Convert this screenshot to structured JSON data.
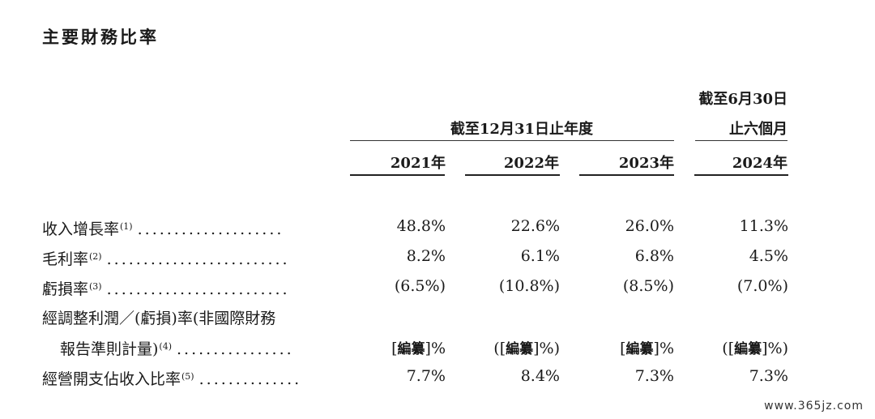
{
  "title": "主要財務比率",
  "header": {
    "group1": "截至12月31日止年度",
    "group2_line1": "截至6月30日",
    "group2_line2": "止六個月",
    "years": [
      "2021年",
      "2022年",
      "2023年",
      "2024年"
    ]
  },
  "rows": [
    {
      "label": "收入增長率",
      "note": "(1)",
      "dots": "....................",
      "values": [
        "48.8%",
        "22.6%",
        "26.0%",
        "11.3%"
      ]
    },
    {
      "label": "毛利率",
      "note": "(2)",
      "dots": ".........................",
      "values": [
        "8.2%",
        "6.1%",
        "6.8%",
        "4.5%"
      ]
    },
    {
      "label": "虧損率",
      "note": "(3)",
      "dots": ".........................",
      "values": [
        "(6.5%)",
        "(10.8%)",
        "(8.5%)",
        "(7.0%)"
      ]
    },
    {
      "label_line1": "經調整利潤／(虧損)率(非國際財務",
      "label_line2": "報告準則計量)",
      "note": "(4)",
      "dots": "................",
      "values": [
        {
          "pre": "[",
          "redacted": "編纂",
          "post": "]%"
        },
        {
          "pre": "([",
          "redacted": "編纂",
          "post": "]%)"
        },
        {
          "pre": "[",
          "redacted": "編纂",
          "post": "]%"
        },
        {
          "pre": "([",
          "redacted": "編纂",
          "post": "]%)"
        }
      ]
    },
    {
      "label": "經營開支佔收入比率",
      "note": "(5)",
      "dots": "..............",
      "values": [
        "7.7%",
        "8.4%",
        "7.3%",
        "7.3%"
      ]
    }
  ],
  "watermark": "www.365jz.com"
}
